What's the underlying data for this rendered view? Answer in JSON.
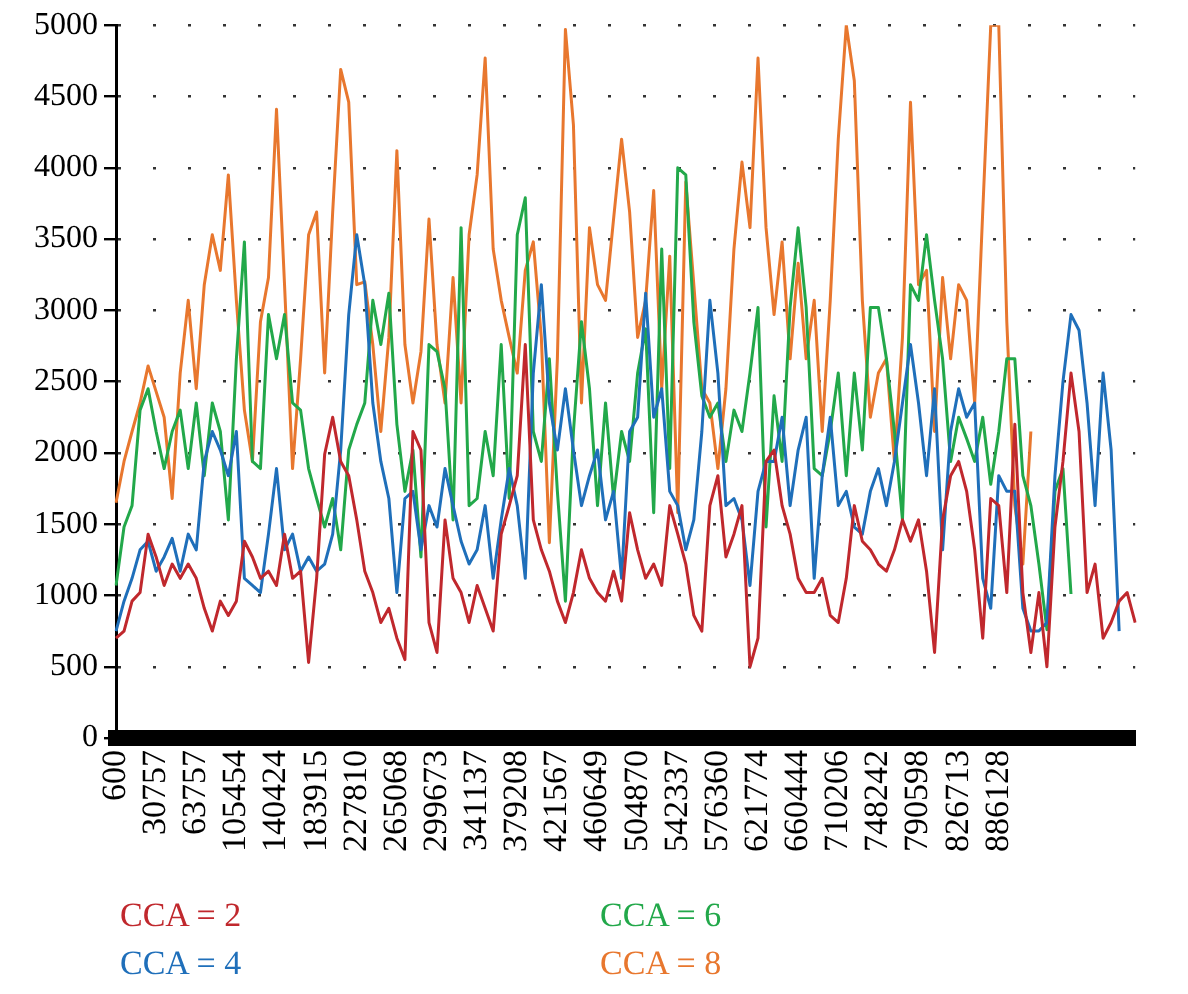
{
  "chart_data": {
    "type": "line",
    "categories": [
      "600",
      null,
      null,
      null,
      null,
      "30757",
      null,
      null,
      null,
      null,
      "63757",
      null,
      null,
      null,
      null,
      "105454",
      null,
      null,
      null,
      null,
      "140424",
      null,
      null,
      null,
      null,
      "183915",
      null,
      null,
      null,
      null,
      "227810",
      null,
      null,
      null,
      null,
      "265068",
      null,
      null,
      null,
      null,
      "299673",
      null,
      null,
      null,
      null,
      "341137",
      null,
      null,
      null,
      null,
      "379208",
      null,
      null,
      null,
      null,
      "421567",
      null,
      null,
      null,
      null,
      "460649",
      null,
      null,
      null,
      null,
      "504870",
      null,
      null,
      null,
      null,
      "542337",
      null,
      null,
      null,
      null,
      "576360",
      null,
      null,
      null,
      null,
      "621774",
      null,
      null,
      null,
      null,
      "660444",
      null,
      null,
      null,
      null,
      "710206",
      null,
      null,
      null,
      null,
      "748242",
      null,
      null,
      null,
      null,
      "790598",
      null,
      null,
      null,
      null,
      "826713",
      null,
      null,
      null,
      null,
      "886128",
      null,
      null,
      null,
      null,
      null,
      null,
      null,
      null,
      null,
      null,
      null,
      null,
      null,
      null,
      null,
      null,
      null
    ],
    "ylim": [
      0,
      5000
    ],
    "yticks": [
      0,
      500,
      1000,
      1500,
      2000,
      2500,
      3000,
      3500,
      4000,
      4500,
      5000
    ],
    "grid": "y",
    "legend": "bottom",
    "marker": "none",
    "line_style": "solid",
    "series": [
      {
        "name": "CCA = 2",
        "color": "#c0282d",
        "values": [
          700,
          750,
          960,
          1020,
          1430,
          1270,
          1070,
          1220,
          1120,
          1220,
          1120,
          910,
          750,
          960,
          860,
          960,
          1380,
          1270,
          1120,
          1170,
          1070,
          1430,
          1120,
          1170,
          530,
          1120,
          1990,
          2250,
          1940,
          1840,
          1530,
          1170,
          1020,
          810,
          910,
          700,
          550,
          2150,
          2020,
          810,
          600,
          1530,
          1120,
          1020,
          810,
          1070,
          910,
          750,
          1430,
          1630,
          1840,
          2760,
          1530,
          1320,
          1170,
          960,
          810,
          1020,
          1320,
          1120,
          1020,
          960,
          1170,
          960,
          1580,
          1320,
          1120,
          1220,
          1070,
          1630,
          1430,
          1220,
          860,
          750,
          1630,
          1840,
          1270,
          1430,
          1630,
          500,
          700,
          1940,
          2020,
          1630,
          1430,
          1120,
          1020,
          1020,
          1120,
          860,
          810,
          1120,
          1630,
          1380,
          1320,
          1220,
          1170,
          1320,
          1530,
          1380,
          1530,
          1170,
          600,
          1530,
          1840,
          1940,
          1730,
          1320,
          700,
          1680,
          1630,
          1020,
          2200,
          1020,
          600,
          1020,
          500,
          1480,
          1940,
          2560,
          2150,
          1020,
          1220,
          700,
          810,
          960,
          1020,
          810
        ]
      },
      {
        "name": "CCA = 4",
        "color": "#1f6fba",
        "values": [
          750,
          960,
          1120,
          1320,
          1380,
          1170,
          1270,
          1400,
          1170,
          1430,
          1320,
          1940,
          2150,
          2020,
          1840,
          2150,
          1120,
          1070,
          1020,
          1430,
          1890,
          1320,
          1430,
          1170,
          1270,
          1170,
          1220,
          1430,
          2020,
          2970,
          3530,
          3180,
          2350,
          1940,
          1680,
          1020,
          1680,
          1730,
          1320,
          1630,
          1480,
          1890,
          1630,
          1380,
          1220,
          1320,
          1630,
          1120,
          1530,
          1890,
          1630,
          1120,
          2560,
          3180,
          2350,
          2020,
          2450,
          2020,
          1630,
          1840,
          2020,
          1530,
          1730,
          1120,
          2150,
          2250,
          3120,
          2250,
          2450,
          1730,
          1630,
          1320,
          1530,
          2150,
          3070,
          2560,
          1630,
          1680,
          1530,
          1070,
          1730,
          1940,
          1940,
          2250,
          1630,
          2020,
          2250,
          1120,
          1840,
          2250,
          1630,
          1730,
          1480,
          1430,
          1730,
          1890,
          1630,
          1940,
          2350,
          2760,
          2350,
          1840,
          2450,
          1320,
          2150,
          2450,
          2250,
          2350,
          1120,
          910,
          1840,
          1730,
          1730,
          910,
          750,
          750,
          810,
          1840,
          2500,
          2970,
          2860,
          2350,
          1630,
          2560,
          2020,
          750,
          null,
          null
        ]
      },
      {
        "name": "CCA = 6",
        "color": "#22a84a",
        "values": [
          1070,
          1480,
          1630,
          2300,
          2450,
          2150,
          1890,
          2150,
          2300,
          1890,
          2350,
          1840,
          2350,
          2150,
          1530,
          2660,
          3480,
          1940,
          1890,
          2970,
          2660,
          2970,
          2350,
          2300,
          1890,
          1680,
          1480,
          1680,
          1320,
          2020,
          2200,
          2350,
          3070,
          2760,
          3120,
          2200,
          1730,
          2020,
          1270,
          2760,
          2710,
          2450,
          1530,
          3580,
          1630,
          1680,
          2150,
          1840,
          2760,
          1680,
          3530,
          3790,
          2150,
          1940,
          2660,
          1730,
          960,
          2150,
          2920,
          2450,
          1630,
          2350,
          1680,
          2150,
          1940,
          2560,
          2870,
          1580,
          3430,
          1890,
          4000,
          3950,
          2920,
          2400,
          2250,
          2350,
          1940,
          2300,
          2150,
          2560,
          3020,
          1480,
          2400,
          1940,
          3020,
          3580,
          3020,
          1890,
          1840,
          2150,
          2560,
          1840,
          2560,
          2020,
          3020,
          3020,
          2660,
          2150,
          1530,
          3180,
          3070,
          3530,
          3070,
          2660,
          1940,
          2250,
          2100,
          1940,
          2250,
          1780,
          2150,
          2660,
          2660,
          1840,
          1630,
          1220,
          760,
          1730,
          1890,
          1010,
          null,
          null,
          null,
          null,
          null,
          null,
          null,
          null
        ]
      },
      {
        "name": "CCA = 8",
        "color": "#e8772e",
        "values": [
          1650,
          1940,
          2150,
          2350,
          2610,
          2430,
          2250,
          1680,
          2560,
          3070,
          2450,
          3180,
          3530,
          3280,
          3950,
          3070,
          2300,
          1940,
          2920,
          3230,
          4410,
          3180,
          1890,
          2660,
          3530,
          3690,
          2560,
          3690,
          4690,
          4460,
          3180,
          3200,
          2760,
          2150,
          2810,
          4120,
          2760,
          2350,
          2710,
          3640,
          2760,
          2350,
          3230,
          2350,
          3530,
          3950,
          4770,
          3430,
          3070,
          2810,
          2560,
          3280,
          3480,
          2810,
          1370,
          2660,
          4970,
          4300,
          2350,
          3580,
          3180,
          3070,
          3640,
          4200,
          3690,
          2810,
          3070,
          3840,
          2450,
          3380,
          1580,
          3900,
          3180,
          2450,
          2350,
          1890,
          2450,
          3430,
          4040,
          3580,
          4770,
          3580,
          2970,
          3480,
          2660,
          3330,
          2660,
          3070,
          2150,
          3070,
          4200,
          5000,
          4610,
          3070,
          2250,
          2560,
          2660,
          1940,
          2810,
          4460,
          3180,
          3280,
          2150,
          3230,
          2660,
          3180,
          3070,
          2350,
          3690,
          5000,
          5000,
          2920,
          1630,
          1220,
          2150,
          null,
          null,
          null,
          null,
          null,
          null,
          null,
          null,
          null,
          null,
          null,
          null,
          null
        ]
      }
    ]
  }
}
